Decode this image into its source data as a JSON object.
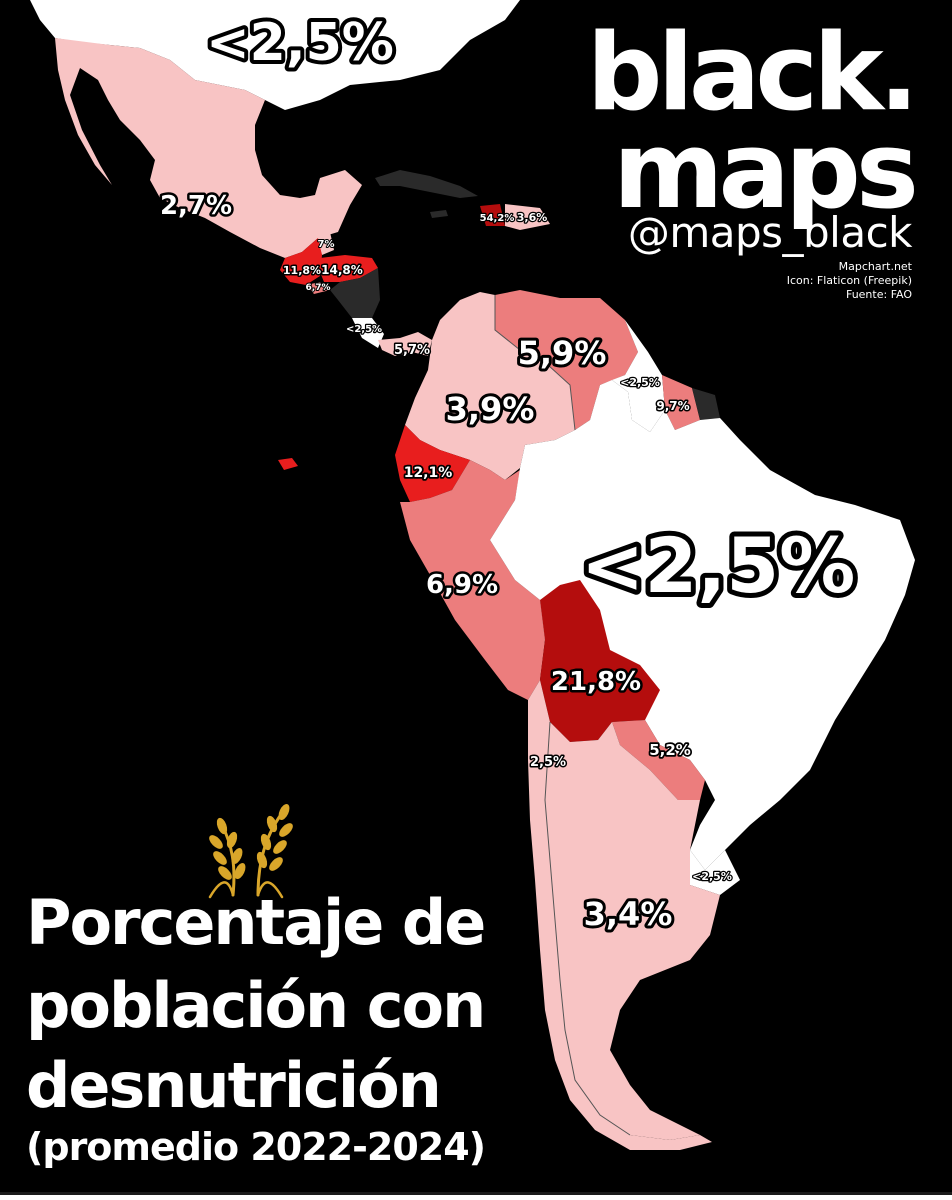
{
  "brand": {
    "name_line1": "black.",
    "name_line2": "maps",
    "handle": "@maps_black",
    "credits": [
      "Mapchart.net",
      "Icon: Flaticon (Freepik)",
      "Fuente: FAO"
    ]
  },
  "title": {
    "lines": [
      "Porcentaje de",
      "población con",
      "desnutrición"
    ],
    "subtitle": "(promedio 2022-2024)"
  },
  "icon": "wheat-icon",
  "colors": {
    "background": "#000000",
    "lt_2_5": "#ffffff",
    "low": "#f8c4c4",
    "medium": "#ec7d7d",
    "high": "#e81e1e",
    "very_high": "#b40d0d",
    "no_data": "#2a2a2a",
    "wheat": "#d9a62a"
  },
  "labels": {
    "usa": "<2,5%",
    "mexico": "2,7%",
    "belize": "7%",
    "guatemala": "11,8%",
    "honduras": "14,8%",
    "el_salvador": "6,7%",
    "costa_rica": "<2,5%",
    "panama": "5,7%",
    "haiti": "54,2%",
    "dominican_republic": "3,6%",
    "venezuela": "5,9%",
    "guyana": "<2,5%",
    "suriname": "9,7%",
    "colombia": "3,9%",
    "ecuador": "12,1%",
    "brazil": "<2,5%",
    "peru": "6,9%",
    "bolivia": "21,8%",
    "paraguay": "5,2%",
    "chile": "2,5%",
    "uruguay": "<2,5%",
    "argentina": "3,4%"
  }
}
